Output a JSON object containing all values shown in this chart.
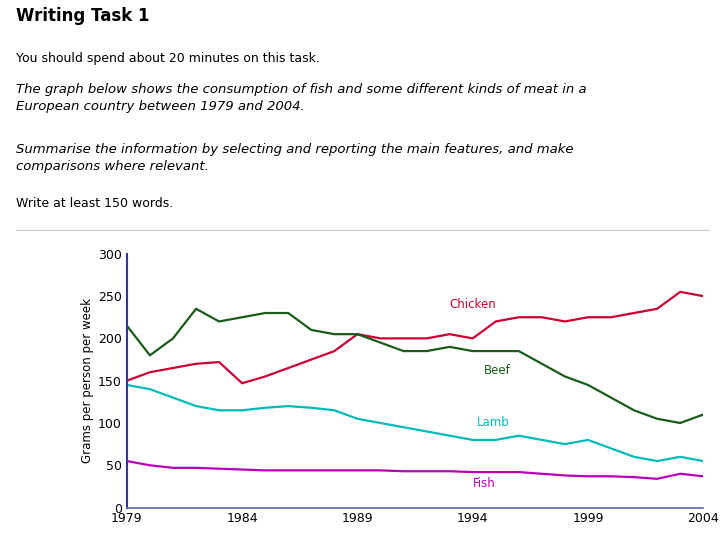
{
  "title_bold": "Writing Task 1",
  "subtitle1": "You should spend about 20 minutes on this task.",
  "subtitle2": "The graph below shows the consumption of fish and some different kinds of meat in a\nEuropean country between 1979 and 2004.",
  "subtitle3": "Summarise the information by selecting and reporting the main features, and make\ncomparisons where relevant.",
  "subtitle4": "Write at least 150 words.",
  "years": [
    1979,
    1980,
    1981,
    1982,
    1983,
    1984,
    1985,
    1986,
    1987,
    1988,
    1989,
    1990,
    1991,
    1992,
    1993,
    1994,
    1995,
    1996,
    1997,
    1998,
    1999,
    2000,
    2001,
    2002,
    2003,
    2004
  ],
  "chicken": [
    150,
    160,
    165,
    170,
    172,
    147,
    155,
    165,
    175,
    185,
    205,
    200,
    200,
    200,
    205,
    200,
    220,
    225,
    225,
    220,
    225,
    225,
    230,
    235,
    255,
    250
  ],
  "beef": [
    215,
    180,
    200,
    235,
    220,
    225,
    230,
    230,
    210,
    205,
    205,
    195,
    185,
    185,
    190,
    185,
    185,
    185,
    170,
    155,
    145,
    130,
    115,
    105,
    100,
    110
  ],
  "lamb": [
    145,
    140,
    130,
    120,
    115,
    115,
    118,
    120,
    118,
    115,
    105,
    100,
    95,
    90,
    85,
    80,
    80,
    85,
    80,
    75,
    80,
    70,
    60,
    55,
    60,
    55
  ],
  "fish": [
    55,
    50,
    47,
    47,
    46,
    45,
    44,
    44,
    44,
    44,
    44,
    44,
    43,
    43,
    43,
    42,
    42,
    42,
    40,
    38,
    37,
    37,
    36,
    34,
    40,
    37
  ],
  "chicken_color": "#cc0033",
  "beef_color": "#1a5c1a",
  "lamb_color": "#00bbbb",
  "fish_color": "#bb00bb",
  "ylabel": "Grams per person per week",
  "ylim": [
    0,
    300
  ],
  "yticks": [
    0,
    50,
    100,
    150,
    200,
    250,
    300
  ],
  "xticks": [
    1979,
    1984,
    1989,
    1994,
    1999,
    2004
  ],
  "background_color": "#ffffff",
  "axis_color": "#3333aa",
  "bottom_axis_color": "#6666aa"
}
